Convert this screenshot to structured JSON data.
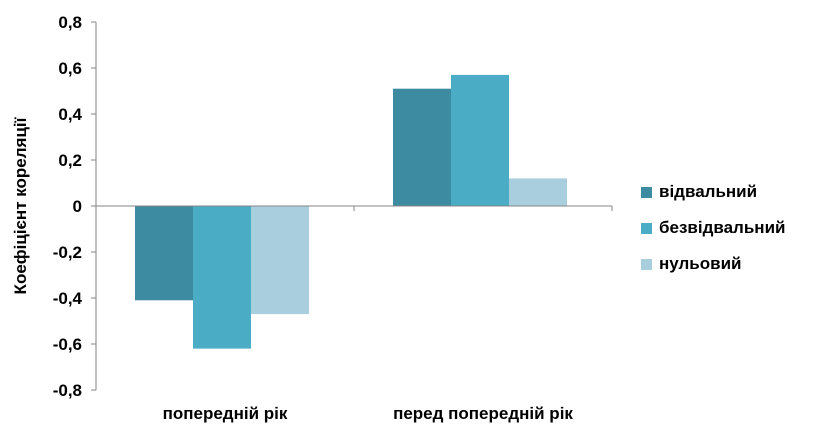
{
  "chart_data": {
    "type": "bar",
    "title": "",
    "xlabel": "",
    "ylabel": "Коефіцієнт кореляції",
    "categories": [
      "попередній рік",
      "перед попередній рік"
    ],
    "series": [
      {
        "name": "відвальний",
        "color": "#3D8BA1",
        "values": [
          -0.41,
          0.51
        ]
      },
      {
        "name": "безвідвальний",
        "color": "#4BACC6",
        "values": [
          -0.62,
          0.57
        ]
      },
      {
        "name": "нульовий",
        "color": "#A9CFDE",
        "values": [
          -0.47,
          0.12
        ]
      }
    ],
    "ylim": [
      -0.8,
      0.8
    ],
    "yticks": [
      -0.8,
      -0.6,
      -0.4,
      -0.2,
      0,
      0.2,
      0.4,
      0.6,
      0.8
    ],
    "ytick_labels": [
      "-0,8",
      "-0,6",
      "-0,4",
      "-0,2",
      "0",
      "0,2",
      "0,4",
      "0,6",
      "0,8"
    ],
    "grid": false,
    "legend_position": "right"
  }
}
